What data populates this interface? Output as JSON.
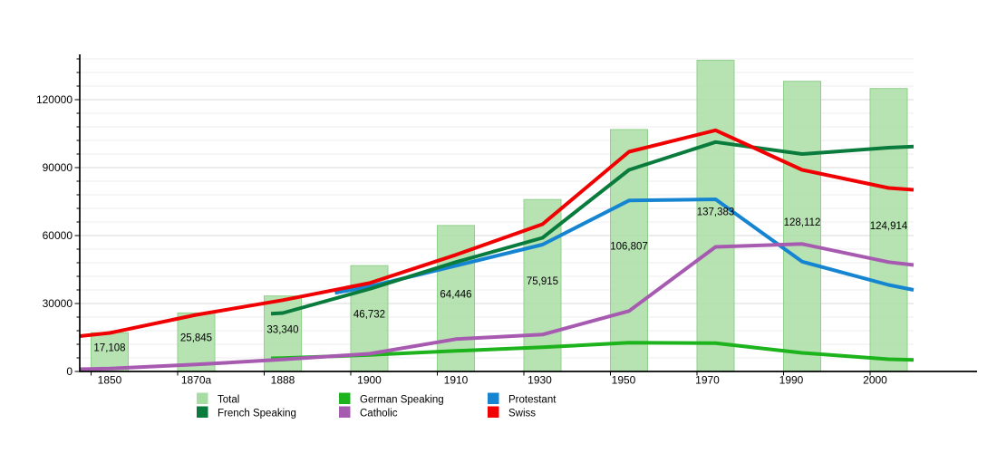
{
  "chart_data": {
    "type": "bar+line",
    "title": "",
    "xlabel": "",
    "ylabel": "",
    "categories": [
      "1850",
      "1870a",
      "1888",
      "1900",
      "1910",
      "1930",
      "1950",
      "1970",
      "1990",
      "2000"
    ],
    "y_axis": {
      "min": 0,
      "max": 140000,
      "major_tick": 30000,
      "minor_tick": 6000,
      "major_ticks": [
        {
          "label": "0",
          "value": 0
        },
        {
          "label": "30000",
          "value": 30000
        },
        {
          "label": "60000",
          "value": 60000
        },
        {
          "label": "90000",
          "value": 90000
        },
        {
          "label": "120000",
          "value": 120000
        }
      ],
      "grid": true
    },
    "bars": {
      "name": "Total",
      "color": "#a7dda2",
      "border_color": "#8fd08a",
      "values": [
        17108,
        25845,
        33340,
        46732,
        64446,
        75915,
        106807,
        137383,
        128112,
        124914
      ],
      "labels": [
        "17,108",
        "25,845",
        "33,340",
        "46,732",
        "64,446",
        "75,915",
        "106,807",
        "137,383",
        "128,112",
        "124,914"
      ]
    },
    "series": [
      {
        "name": "German Speaking",
        "color": "#1cb31c",
        "values": [
          null,
          null,
          5900,
          7300,
          9100,
          10700,
          12700,
          12500,
          8200,
          5400
        ],
        "pre": {
          "dx": -13,
          "value": 5800
        },
        "right_edge": 5100
      },
      {
        "name": "Protestant",
        "color": "#1585d1",
        "values": [
          null,
          null,
          null,
          37500,
          46700,
          56000,
          75500,
          76000,
          48500,
          38200
        ],
        "pre": {
          "dx": -38,
          "value": 34700
        },
        "right_edge": 36000
      },
      {
        "name": "French Speaking",
        "color": "#097c3d",
        "values": [
          null,
          null,
          25800,
          36400,
          48300,
          59000,
          89000,
          101300,
          96000,
          98800
        ],
        "pre": {
          "dx": -13,
          "value": 25500
        },
        "right_edge": 99300
      },
      {
        "name": "Catholic",
        "color": "#a65bb0",
        "values": [
          1300,
          3100,
          5300,
          7800,
          14300,
          16300,
          26700,
          55000,
          56300,
          48300
        ],
        "left_edge": 1000,
        "right_edge": 47000
      },
      {
        "name": "Swiss",
        "color": "#f00000",
        "values": [
          17000,
          25000,
          31500,
          39000,
          51500,
          65000,
          97000,
          106500,
          89000,
          81000
        ],
        "left_edge": 15600,
        "right_edge": 80200
      }
    ],
    "legend": {
      "position": "bottom",
      "items": [
        {
          "label": "Total",
          "color": "#a7dda2",
          "row": 0,
          "col": 0
        },
        {
          "label": "German Speaking",
          "color": "#1cb31c",
          "row": 0,
          "col": 1
        },
        {
          "label": "Protestant",
          "color": "#1585d1",
          "row": 0,
          "col": 2
        },
        {
          "label": "French Speaking",
          "color": "#097c3d",
          "row": 1,
          "col": 0
        },
        {
          "label": "Catholic",
          "color": "#a65bb0",
          "row": 1,
          "col": 1
        },
        {
          "label": "Swiss",
          "color": "#f00000",
          "row": 1,
          "col": 2
        }
      ]
    }
  }
}
